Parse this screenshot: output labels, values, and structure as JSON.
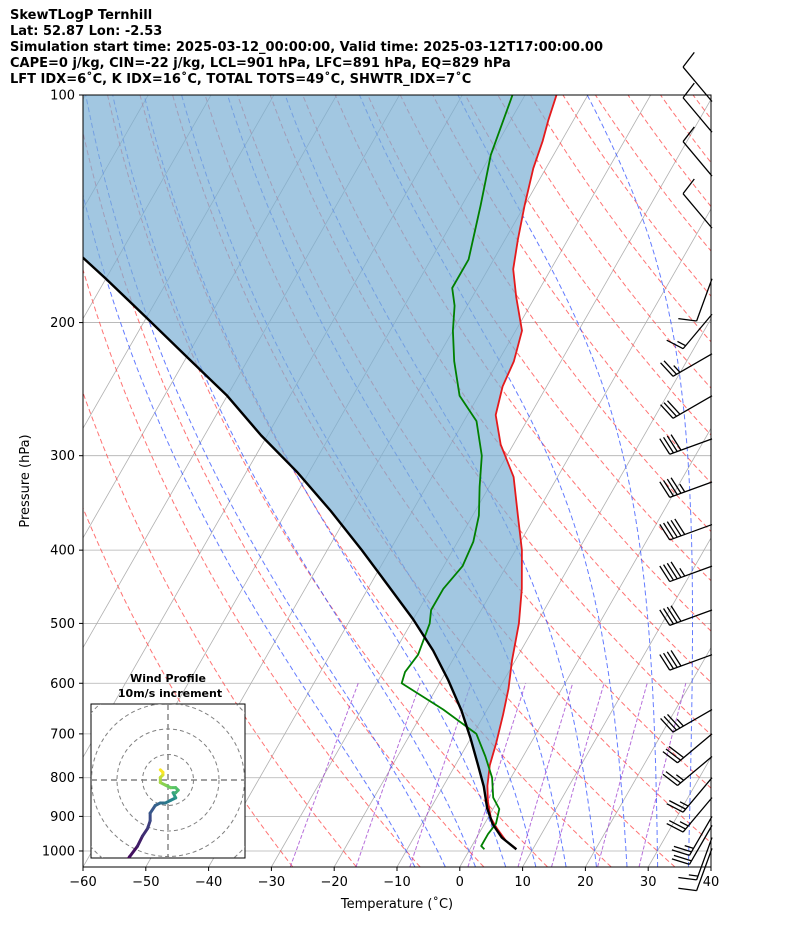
{
  "header": {
    "line1": "SkewTLogP Ternhill",
    "line2": "Lat: 52.87   Lon: -2.53",
    "line3": "Simulation start time: 2025-03-12_00:00:00, Valid time: 2025-03-12T17:00:00.00",
    "line4": "CAPE=0 j/kg, CIN=-22 j/kg, LCL=901 hPa, LFC=891 hPa, EQ=829 hPa",
    "line5": "LFT IDX=6˚C, K IDX=16˚C, TOTAL TOTS=49˚C, SHWTR_IDX=7˚C"
  },
  "chart_data": {
    "type": "skewt",
    "xlabel": "Temperature ($^\\circ$C)",
    "xlabel_display": "Temperature (˚C)",
    "ylabel": "Pressure (hPa)",
    "x_ticks": [
      -60,
      -50,
      -40,
      -30,
      -20,
      -10,
      0,
      10,
      20,
      30,
      40
    ],
    "y_ticks": [
      100,
      200,
      300,
      400,
      500,
      600,
      700,
      800,
      900,
      1000
    ],
    "xlim": [
      -60,
      40
    ],
    "ylim": [
      1050,
      100
    ],
    "grid": true,
    "colors": {
      "temperature": "#e41a1c",
      "dewpoint": "#008000",
      "parcel": "#000000",
      "cape_fill": "#7bafd4",
      "dry_adiabats": "#ff4040",
      "moist_adiabats": "#3050ff",
      "mixing_ratio": "#9933cc",
      "isotherms": "#aaaaaa"
    },
    "series": [
      {
        "key": "temperature",
        "points": [
          [
            7.2,
            992
          ],
          [
            5,
            970
          ],
          [
            2.5,
            935
          ],
          [
            0.5,
            905
          ],
          [
            -1.5,
            860
          ],
          [
            -3,
            820
          ],
          [
            -4.5,
            770
          ],
          [
            -5.5,
            720
          ],
          [
            -7,
            660
          ],
          [
            -8.5,
            610
          ],
          [
            -10.5,
            560
          ],
          [
            -12.8,
            500
          ],
          [
            -15.5,
            450
          ],
          [
            -19,
            400
          ],
          [
            -22.8,
            360
          ],
          [
            -27,
            320
          ],
          [
            -32,
            290
          ],
          [
            -35.5,
            265
          ],
          [
            -37,
            243
          ],
          [
            -37.5,
            225
          ],
          [
            -39,
            205
          ],
          [
            -43,
            185
          ],
          [
            -46,
            170
          ],
          [
            -48,
            155
          ],
          [
            -50,
            140
          ],
          [
            -52,
            125
          ],
          [
            -53,
            115
          ],
          [
            -54,
            108
          ],
          [
            -55,
            100
          ]
        ]
      },
      {
        "key": "dewpoint",
        "points": [
          [
            2.3,
            995
          ],
          [
            1.5,
            985
          ],
          [
            1.5,
            950
          ],
          [
            1.8,
            920
          ],
          [
            1,
            880
          ],
          [
            -1,
            850
          ],
          [
            -3,
            800
          ],
          [
            -6,
            750
          ],
          [
            -9.5,
            700
          ],
          [
            -17,
            650
          ],
          [
            -26,
            600
          ],
          [
            -26.5,
            580
          ],
          [
            -26,
            550
          ],
          [
            -27,
            500
          ],
          [
            -28,
            480
          ],
          [
            -28,
            450
          ],
          [
            -27,
            420
          ],
          [
            -27.5,
            390
          ],
          [
            -29,
            360
          ],
          [
            -31.5,
            330
          ],
          [
            -34,
            300
          ],
          [
            -38,
            270
          ],
          [
            -43,
            250
          ],
          [
            -47,
            225
          ],
          [
            -50,
            205
          ],
          [
            -52,
            190
          ],
          [
            -54,
            180
          ],
          [
            -54,
            165
          ],
          [
            -57,
            140
          ],
          [
            -60,
            120
          ],
          [
            -62,
            100
          ]
        ]
      },
      {
        "key": "parcel",
        "points": [
          [
            7.4,
            995
          ],
          [
            4,
            960
          ],
          [
            1.3,
            921
          ],
          [
            -1,
            878
          ],
          [
            -3.5,
            822
          ],
          [
            -6.5,
            768
          ],
          [
            -10,
            710
          ],
          [
            -14,
            652
          ],
          [
            -19,
            593
          ],
          [
            -24,
            543
          ],
          [
            -30,
            494
          ],
          [
            -37,
            446
          ],
          [
            -44.5,
            400
          ],
          [
            -53,
            355
          ],
          [
            -62,
            315
          ],
          [
            -71,
            282
          ],
          [
            -80,
            250
          ],
          [
            -90,
            222
          ],
          [
            -100,
            197
          ],
          [
            -110,
            175
          ],
          [
            -120,
            156
          ],
          [
            -130,
            140
          ],
          [
            -140,
            125
          ],
          [
            -150,
            112
          ],
          [
            -158,
            100
          ]
        ]
      }
    ],
    "wind_barbs": [
      {
        "p": 992,
        "spd": 10,
        "dir": 200
      },
      {
        "p": 960,
        "spd": 15,
        "dir": 200
      },
      {
        "p": 925,
        "spd": 20,
        "dir": 210
      },
      {
        "p": 900,
        "spd": 25,
        "dir": 210
      },
      {
        "p": 850,
        "spd": 25,
        "dir": 220
      },
      {
        "p": 800,
        "spd": 25,
        "dir": 220
      },
      {
        "p": 750,
        "spd": 25,
        "dir": 230
      },
      {
        "p": 700,
        "spd": 30,
        "dir": 230
      },
      {
        "p": 650,
        "spd": 35,
        "dir": 240
      },
      {
        "p": 550,
        "spd": 40,
        "dir": 250
      },
      {
        "p": 480,
        "spd": 40,
        "dir": 250
      },
      {
        "p": 420,
        "spd": 45,
        "dir": 250
      },
      {
        "p": 370,
        "spd": 50,
        "dir": 250
      },
      {
        "p": 325,
        "spd": 45,
        "dir": 250
      },
      {
        "p": 285,
        "spd": 40,
        "dir": 250
      },
      {
        "p": 250,
        "spd": 30,
        "dir": 240
      },
      {
        "p": 220,
        "spd": 25,
        "dir": 240
      },
      {
        "p": 195,
        "spd": 15,
        "dir": 220
      },
      {
        "p": 175,
        "spd": 10,
        "dir": 200
      },
      {
        "p": 150,
        "spd": 10,
        "dir": 320
      },
      {
        "p": 128,
        "spd": 10,
        "dir": 320
      },
      {
        "p": 112,
        "spd": 10,
        "dir": 320
      },
      {
        "p": 102,
        "spd": 10,
        "dir": 320
      }
    ],
    "hodograph": {
      "title": "Wind Profile",
      "subtitle": "10m/s increment",
      "ring_step_ms": 10,
      "u": [
        -17,
        -15,
        -12,
        -10,
        -8,
        -7,
        -7,
        -5,
        -3,
        -1,
        1,
        3,
        3,
        2,
        3,
        4,
        3,
        1,
        -1,
        -3,
        -3,
        -2,
        -2,
        -3
      ],
      "v": [
        -33,
        -30,
        -26,
        -22,
        -19,
        -16,
        -13,
        -10,
        -9,
        -9,
        -8,
        -7,
        -7,
        -5,
        -5,
        -4,
        -3,
        -3,
        -2,
        -1,
        1,
        2,
        3,
        4
      ]
    }
  }
}
